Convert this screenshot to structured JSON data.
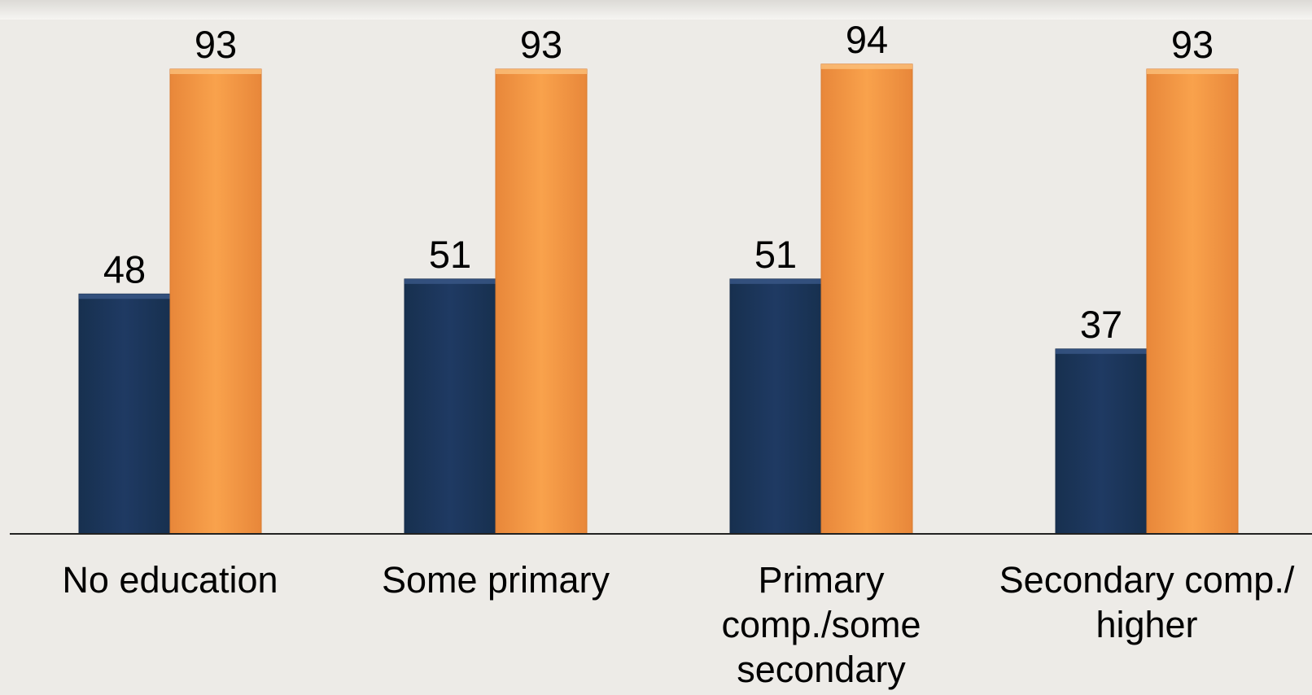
{
  "chart_data": {
    "type": "bar",
    "categories": [
      "No education",
      "Some primary",
      "Primary comp./some secondary",
      "Secondary comp./ higher"
    ],
    "category_label_lines": [
      [
        "No education"
      ],
      [
        "Some primary"
      ],
      [
        "Primary",
        "comp./some",
        "secondary"
      ],
      [
        "Secondary comp./",
        "higher"
      ]
    ],
    "series": [
      {
        "values": [
          48,
          51,
          51,
          37
        ],
        "color": "#1f3a63"
      },
      {
        "values": [
          93,
          93,
          94,
          93
        ],
        "color": "#f79d47"
      }
    ],
    "ylim": [
      0,
      100
    ],
    "grid": false,
    "legend": "none",
    "title": "",
    "xlabel": "",
    "ylabel": ""
  },
  "colors": {
    "background": "#edebe7",
    "axis": "#222222"
  }
}
